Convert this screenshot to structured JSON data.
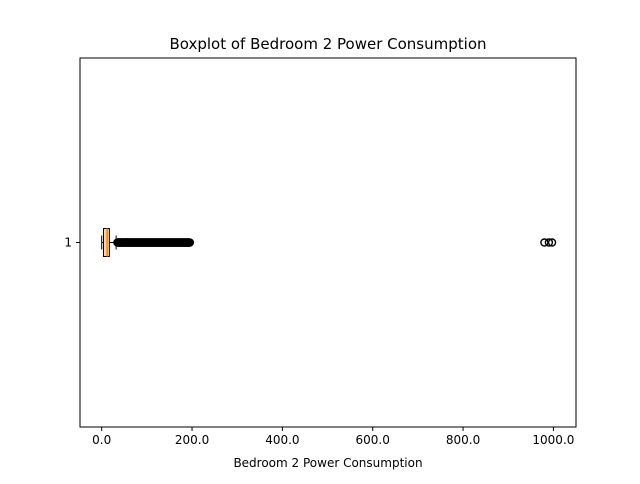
{
  "chart_data": {
    "type": "boxplot",
    "orientation": "horizontal",
    "title": "Boxplot of Bedroom 2 Power Consumption",
    "xlabel": "Bedroom 2 Power Consumption",
    "ylabel": "",
    "xlim": [
      -48,
      1050
    ],
    "xticks": [
      {
        "value": 0,
        "label": "0.0"
      },
      {
        "value": 200,
        "label": "200.0"
      },
      {
        "value": 400,
        "label": "400.0"
      },
      {
        "value": 600,
        "label": "600.0"
      },
      {
        "value": 800,
        "label": "800.0"
      },
      {
        "value": 1000,
        "label": "1000.0"
      }
    ],
    "yticks": [
      {
        "value": 1,
        "label": "1"
      }
    ],
    "box": {
      "position": 1,
      "whisker_low": 0,
      "q1": 4,
      "median": 12,
      "q3": 17,
      "whisker_high": 32,
      "outlier_range": [
        32,
        195
      ],
      "outliers_high": [
        980,
        990,
        997
      ]
    },
    "colors": {
      "box_fill": "#ffd59e",
      "median": "#ff7f0e",
      "outline": "#000000"
    },
    "grid": false,
    "legend": "none"
  }
}
